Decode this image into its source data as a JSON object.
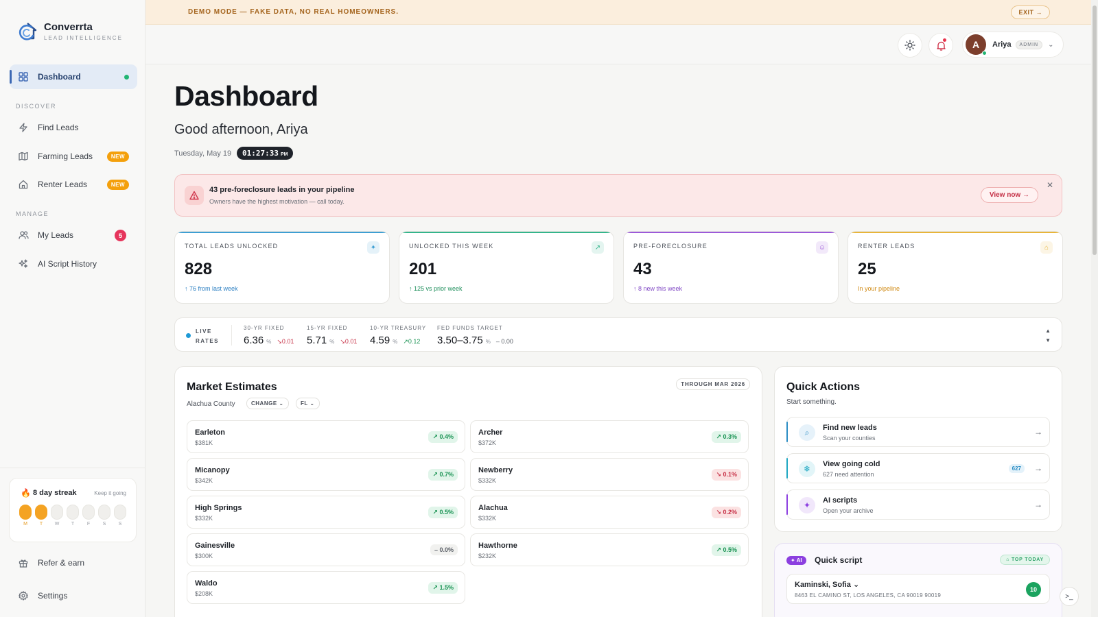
{
  "app": {
    "name": "Converrta",
    "tagline": "LEAD INTELLIGENCE"
  },
  "sidebar": {
    "dashboard": "Dashboard",
    "sections": {
      "discover": "DISCOVER",
      "manage": "MANAGE"
    },
    "discover_items": [
      {
        "label": "Find Leads",
        "icon": "bolt-icon"
      },
      {
        "label": "Farming Leads",
        "icon": "map-icon",
        "badge": "NEW"
      },
      {
        "label": "Renter Leads",
        "icon": "home-icon",
        "badge": "NEW"
      }
    ],
    "manage_items": [
      {
        "label": "My Leads",
        "icon": "users-icon",
        "count": "5"
      },
      {
        "label": "AI Script History",
        "icon": "sparkles-icon"
      }
    ],
    "streak": {
      "title": "8 day streak",
      "keep": "Keep it going",
      "days": [
        "M",
        "T",
        "W",
        "T",
        "F",
        "S",
        "S"
      ],
      "active_days": 2
    },
    "bottom_items": [
      {
        "label": "Refer & earn",
        "icon": "gift-icon"
      },
      {
        "label": "Settings",
        "icon": "gear-icon"
      }
    ]
  },
  "banner": {
    "text": "DEMO MODE — FAKE DATA, NO REAL HOMEOWNERS.",
    "exit": "EXIT →"
  },
  "user": {
    "initial": "A",
    "name": "Ariya",
    "role": "ADMIN"
  },
  "header": {
    "title": "Dashboard",
    "greeting": "Good afternoon, Ariya",
    "date": "Tuesday, May 19",
    "time": "01:27:33",
    "ampm": "PM"
  },
  "alert": {
    "title": "43 pre-foreclosure leads in your pipeline",
    "subtitle": "Owners have the highest motivation — call today.",
    "action": "View now →"
  },
  "stats": [
    {
      "label": "TOTAL LEADS UNLOCKED",
      "value": "828",
      "sub": "↑ 76 from last week",
      "accent": "#3e9fd3",
      "sub_color": "#2b7fc2",
      "icon": "✦"
    },
    {
      "label": "UNLOCKED THIS WEEK",
      "value": "201",
      "sub": "↑ 125 vs prior week",
      "accent": "#34b58b",
      "sub_color": "#1f8f5c",
      "icon": "↗"
    },
    {
      "label": "PRE-FORECLOSURE",
      "value": "43",
      "sub": "↑ 8 new this week",
      "accent": "#9c5ad9",
      "sub_color": "#7f46c4",
      "icon": "☺"
    },
    {
      "label": "RENTER LEADS",
      "value": "25",
      "sub": "In your pipeline",
      "accent": "#e8b53a",
      "sub_color": "#d08a14",
      "icon": "⌂"
    }
  ],
  "rates": {
    "label_top": "LIVE",
    "label_bottom": "RATES",
    "items": [
      {
        "name": "30-YR FIXED",
        "value": "6.36",
        "unit": "%",
        "change": "↘0.01",
        "dir": "down"
      },
      {
        "name": "15-YR FIXED",
        "value": "5.71",
        "unit": "%",
        "change": "↘0.01",
        "dir": "down"
      },
      {
        "name": "10-YR TREASURY",
        "value": "4.59",
        "unit": "%",
        "change": "↗0.12",
        "dir": "up"
      },
      {
        "name": "FED FUNDS TARGET",
        "value": "3.50–3.75",
        "unit": "%",
        "change": "– 0.00",
        "dir": "flat"
      }
    ]
  },
  "market": {
    "title": "Market Estimates",
    "county": "Alachua County",
    "change_select": "CHANGE ⌄",
    "state_select": "FL ⌄",
    "through": "THROUGH MAR 2026",
    "items": [
      {
        "name": "Earleton",
        "price": "$381K",
        "change": "↗ 0.4%",
        "dir": "up"
      },
      {
        "name": "Archer",
        "price": "$372K",
        "change": "↗ 0.3%",
        "dir": "up"
      },
      {
        "name": "Micanopy",
        "price": "$342K",
        "change": "↗ 0.7%",
        "dir": "up"
      },
      {
        "name": "Newberry",
        "price": "$332K",
        "change": "↘ 0.1%",
        "dir": "down"
      },
      {
        "name": "High Springs",
        "price": "$332K",
        "change": "↗ 0.5%",
        "dir": "up"
      },
      {
        "name": "Alachua",
        "price": "$332K",
        "change": "↘ 0.2%",
        "dir": "down"
      },
      {
        "name": "Gainesville",
        "price": "$300K",
        "change": "– 0.0%",
        "dir": "flat"
      },
      {
        "name": "Hawthorne",
        "price": "$232K",
        "change": "↗ 0.5%",
        "dir": "up"
      },
      {
        "name": "Waldo",
        "price": "$208K",
        "change": "↗ 1.5%",
        "dir": "up"
      }
    ]
  },
  "quick_actions": {
    "title": "Quick Actions",
    "subtitle": "Start something.",
    "items": [
      {
        "title": "Find new leads",
        "sub": "Scan your counties",
        "icon": "search-icon",
        "color": "#2b8dc4",
        "bg": "#e6f2fa"
      },
      {
        "title": "View going cold",
        "sub": "627 need attention",
        "icon": "snowflake-icon",
        "color": "#1ea7c2",
        "bg": "#e2f5f8",
        "count": "627"
      },
      {
        "title": "AI scripts",
        "sub": "Open your archive",
        "icon": "sparkles-icon",
        "color": "#8c3fe0",
        "bg": "#f1e7fb"
      }
    ]
  },
  "quick_script": {
    "badge": "✦ AI",
    "title": "Quick script",
    "top_today": "⌂ TOP TODAY",
    "lead_name": "Kaminski, Sofia ⌄",
    "lead_address": "8463 EL CAMINO ST, LOS ANGELES, CA 90019    90019",
    "score": "10"
  },
  "colors": {
    "up": "#1c9455",
    "down": "#c8354a",
    "flat": "#5a5f67"
  }
}
